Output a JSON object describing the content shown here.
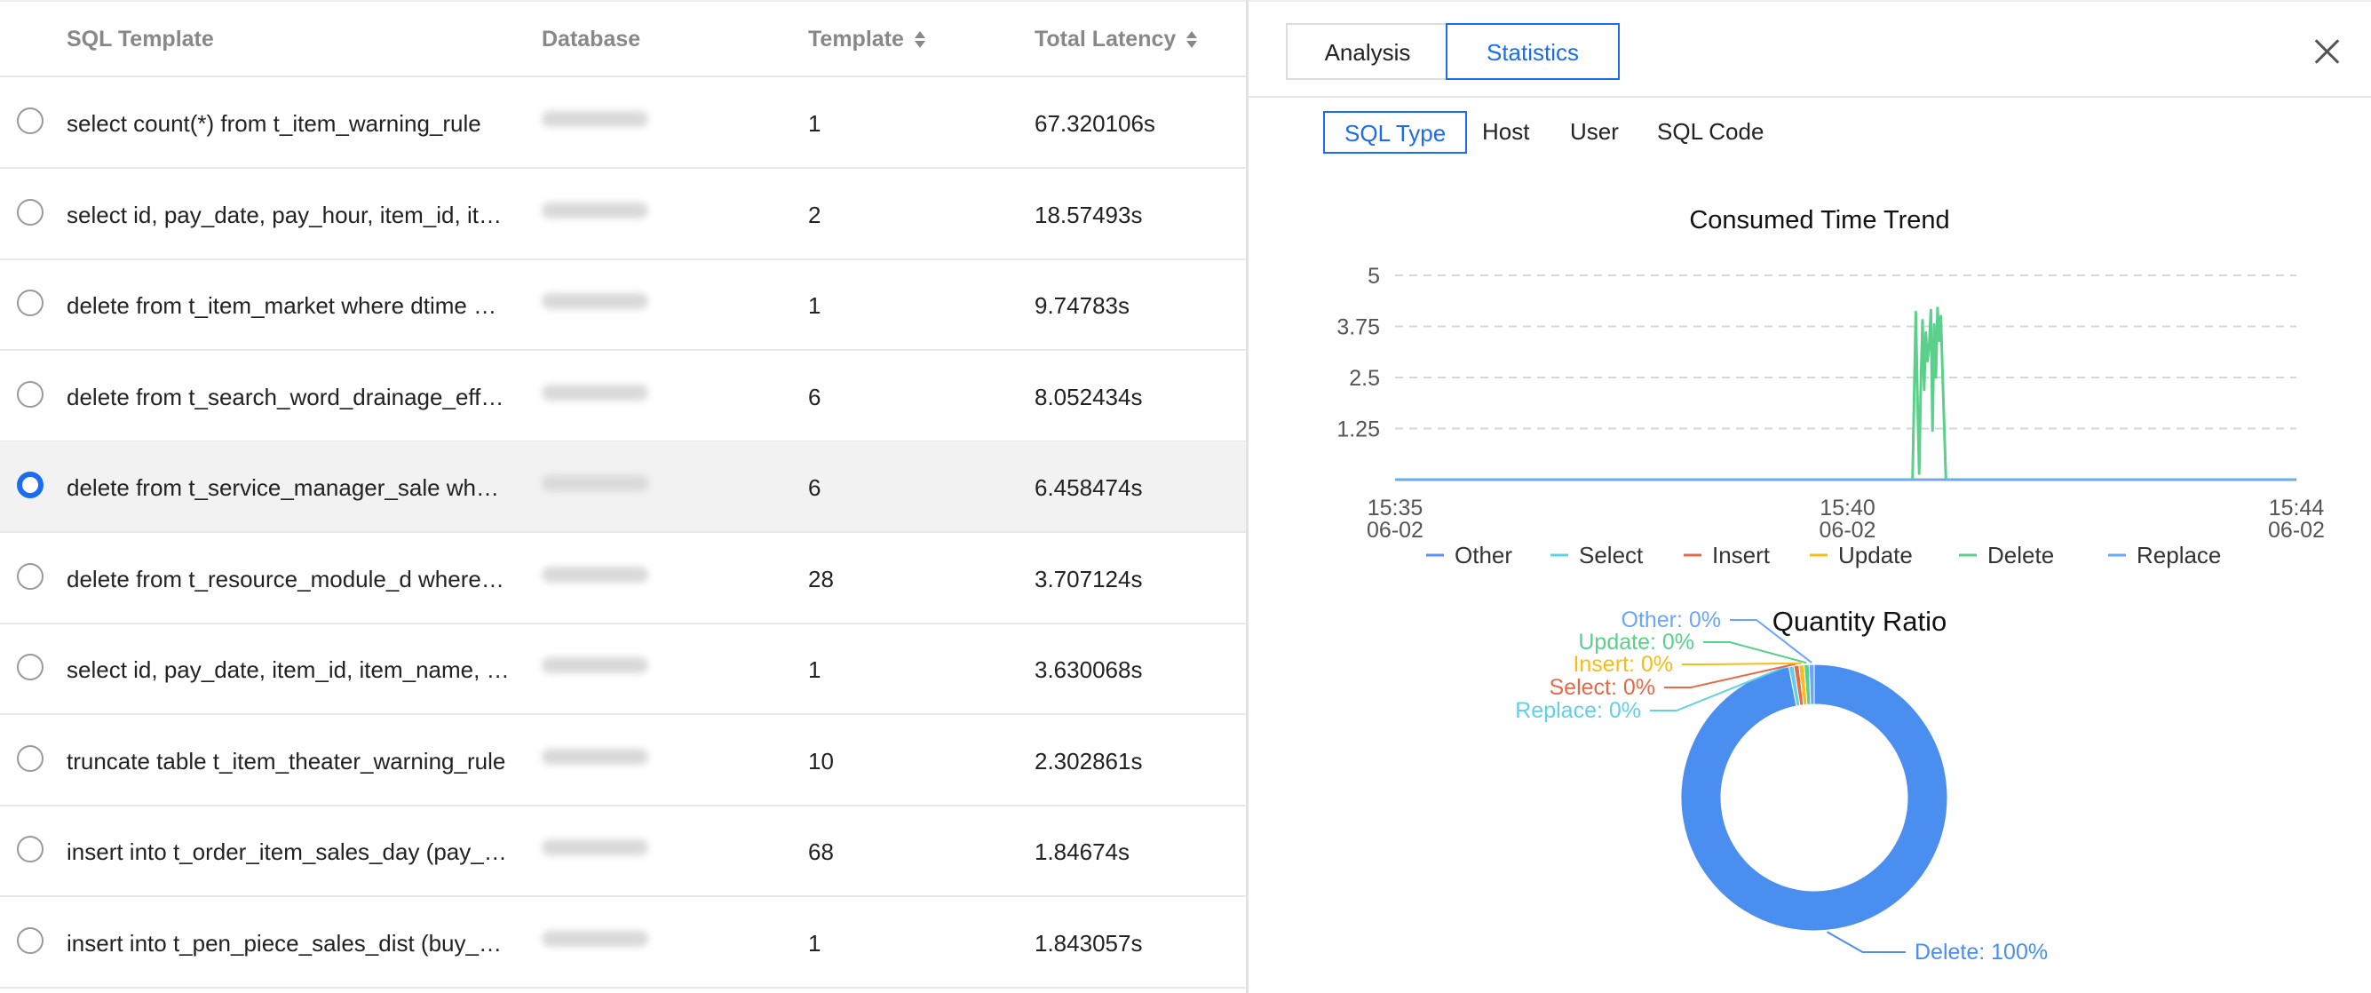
{
  "table": {
    "headers": {
      "sql": "SQL Template",
      "db": "Database",
      "tpl": "Template",
      "lat": "Total Latency"
    },
    "rows": [
      {
        "sql": "select count(*) from t_item_warning_rule",
        "tpl": "1",
        "lat": "67.320106s"
      },
      {
        "sql": "select id, pay_date, pay_hour, item_id, it…",
        "tpl": "2",
        "lat": "18.57493s"
      },
      {
        "sql": "delete from t_item_market where dtime …",
        "tpl": "1",
        "lat": "9.74783s"
      },
      {
        "sql": "delete from t_search_word_drainage_eff…",
        "tpl": "6",
        "lat": "8.052434s"
      },
      {
        "sql": "delete from t_service_manager_sale whe…",
        "tpl": "6",
        "lat": "6.458474s"
      },
      {
        "sql": "delete from t_resource_module_d where …",
        "tpl": "28",
        "lat": "3.707124s"
      },
      {
        "sql": "select id, pay_date, item_id, item_name, …",
        "tpl": "1",
        "lat": "3.630068s"
      },
      {
        "sql": "truncate table t_item_theater_warning_rule",
        "tpl": "10",
        "lat": "2.302861s"
      },
      {
        "sql": "insert into t_order_item_sales_day (pay_…",
        "tpl": "68",
        "lat": "1.84674s"
      },
      {
        "sql": "insert into t_pen_piece_sales_dist (buy_…",
        "tpl": "1",
        "lat": "1.843057s"
      }
    ],
    "selected_row": 4
  },
  "panel": {
    "tabs": [
      "Analysis",
      "Statistics"
    ],
    "active_tab": "Statistics",
    "subtabs": [
      "SQL Type",
      "Host",
      "User",
      "SQL Code"
    ],
    "active_subtab": "SQL Type"
  },
  "colors": {
    "accent": "#1a6cf0"
  },
  "chart_data": [
    {
      "type": "line",
      "title": "Consumed Time Trend",
      "y_ticks": [
        "5",
        "3.75",
        "2.5",
        "1.25"
      ],
      "ylim": [
        0,
        5
      ],
      "grid": true,
      "x_ticks": [
        {
          "time": "15:35",
          "date": "06-02"
        },
        {
          "time": "15:40",
          "date": "06-02"
        },
        {
          "time": "15:44",
          "date": "06-02"
        }
      ],
      "legend_position": "bottom",
      "series": [
        {
          "name": "Other",
          "color": "#5b8ff9",
          "values": [
            [
              0,
              0
            ],
            [
              540,
              0
            ]
          ]
        },
        {
          "name": "Select",
          "color": "#61d0e6",
          "values": [
            [
              0,
              0
            ],
            [
              540,
              0
            ]
          ]
        },
        {
          "name": "Insert",
          "color": "#e8684a",
          "values": [
            [
              0,
              0
            ],
            [
              540,
              0
            ]
          ]
        },
        {
          "name": "Update",
          "color": "#f6bd16",
          "values": [
            [
              0,
              0
            ],
            [
              540,
              0
            ]
          ]
        },
        {
          "name": "Delete",
          "color": "#5ad08a",
          "values": [
            [
              0,
              0
            ],
            [
              310,
              0
            ],
            [
              312,
              4.1
            ],
            [
              313,
              2.0
            ],
            [
              314,
              0.15
            ],
            [
              315,
              2.4
            ],
            [
              316,
              3.9
            ],
            [
              317,
              2.2
            ],
            [
              318,
              3.6
            ],
            [
              319,
              2.9
            ],
            [
              320,
              3.3
            ],
            [
              321,
              4.15
            ],
            [
              322,
              1.2
            ],
            [
              323,
              3.8
            ],
            [
              324,
              2.5
            ],
            [
              325,
              4.2
            ],
            [
              326,
              3.4
            ],
            [
              327,
              4.0
            ],
            [
              328,
              2.6
            ],
            [
              329,
              1.3
            ],
            [
              330,
              0
            ],
            [
              540,
              0
            ]
          ]
        },
        {
          "name": "Replace",
          "color": "#6aa5ff",
          "values": [
            [
              0,
              0
            ],
            [
              540,
              0
            ]
          ]
        }
      ]
    },
    {
      "type": "pie",
      "title": "Quantity Ratio",
      "slices": [
        {
          "name": "Delete",
          "label": "Delete: 100%",
          "value": 100,
          "color": "#4a8ef0"
        },
        {
          "name": "Replace",
          "label": "Replace: 0%",
          "value": 0,
          "color": "#61d0e6"
        },
        {
          "name": "Select",
          "label": "Select: 0%",
          "value": 0,
          "color": "#e8684a"
        },
        {
          "name": "Insert",
          "label": "Insert: 0%",
          "value": 0,
          "color": "#f6bd16"
        },
        {
          "name": "Update",
          "label": "Update: 0%",
          "value": 0,
          "color": "#5ad08a"
        },
        {
          "name": "Other",
          "label": "Other: 0%",
          "value": 0,
          "color": "#6aa5ff"
        }
      ]
    }
  ]
}
